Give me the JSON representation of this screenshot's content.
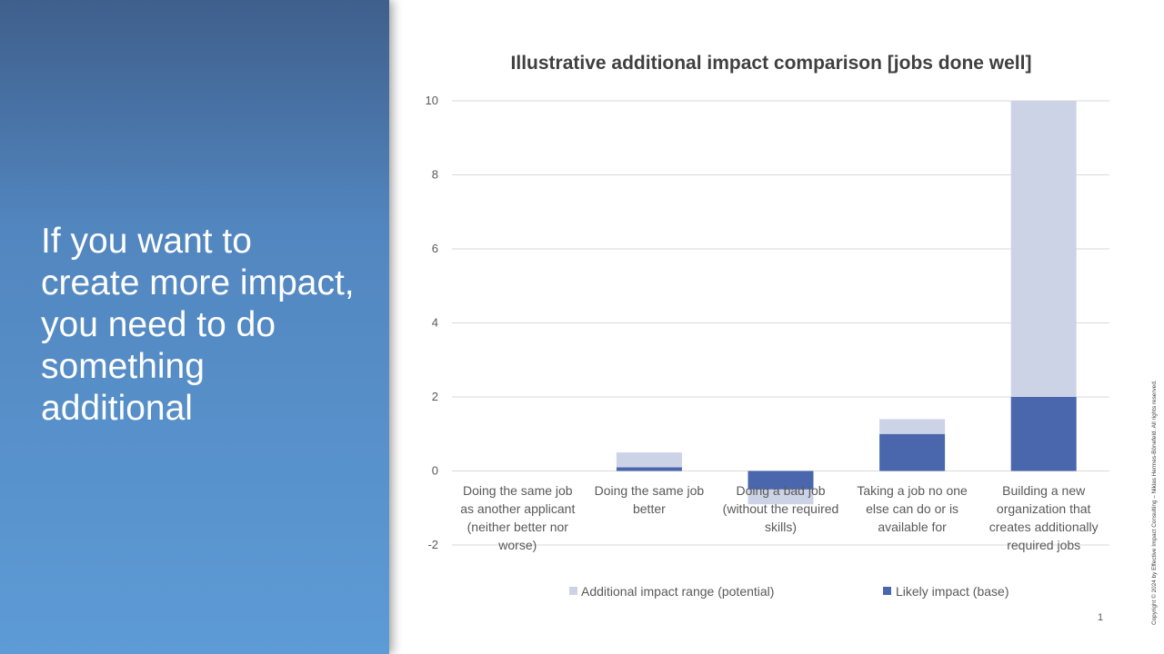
{
  "slide": {
    "headline": "If you want to\ncreate more impact,\nyou need to do\nsomething\nadditional",
    "page_number": "1",
    "copyright": "Copyright © 2024 by Effective Impact Consulting – Niklas Hermes-Bönefeld. All rights reserved."
  },
  "colors": {
    "base": "#4a67ad",
    "potential": "#cdd3e6",
    "grid": "#d9d9d9",
    "text": "#595959"
  },
  "chart_data": {
    "type": "bar",
    "stacked": true,
    "title": "Illustrative additional impact comparison [jobs done well]",
    "categories": [
      "Doing the same job\nas another applicant\n(neither better nor\nworse)",
      "Doing the same job\nbetter",
      "Doing a bad job\n(without the required\nskills)",
      "Taking a job no one\nelse can do or is\navailable for",
      "Building a new\norganization that\ncreates additionally\nrequired jobs"
    ],
    "series": [
      {
        "name": "Likely impact (base)",
        "values": [
          0,
          0.1,
          -0.5,
          1,
          2
        ]
      },
      {
        "name": "Additional impact range (potential)",
        "values": [
          0,
          0.4,
          -0.4,
          0.4,
          8
        ]
      }
    ],
    "legend_order": [
      "Additional impact range (potential)",
      "Likely impact (base)"
    ],
    "ylim": [
      -2,
      10
    ],
    "yticks": [
      "10",
      "8",
      "6",
      "4",
      "2",
      "0",
      "-2"
    ],
    "xlabel": "",
    "ylabel": "",
    "grid": true,
    "legend": "bottom"
  }
}
